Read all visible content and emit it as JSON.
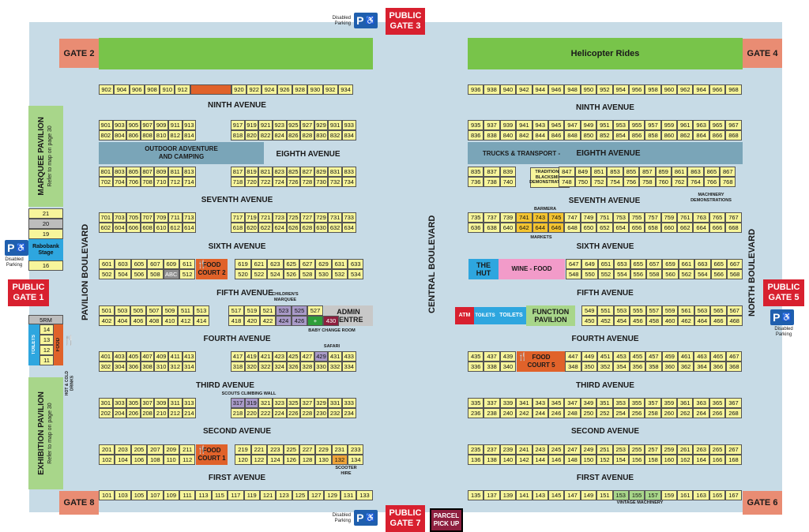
{
  "gates": {
    "g2": "GATE 2",
    "g4": "GATE 4",
    "g6": "GATE 6",
    "g8": "GATE 8"
  },
  "public": {
    "g1": "PUBLIC\nGATE 1",
    "g3": "PUBLIC\nGATE 3",
    "g5": "PUBLIC\nGATE 5",
    "g7": "PUBLIC\nGATE 7"
  },
  "parking": {
    "label": "Disabled\nParking",
    "symbol": "P"
  },
  "helicopter": "Helicopter Rides",
  "avenues": {
    "ninth": "NINTH AVENUE",
    "eighth": "EIGHTH AVENUE",
    "seventh": "SEVENTH AVENUE",
    "sixth": "SIXTH AVENUE",
    "fifth": "FIFTH AVENUE",
    "fourth": "FOURTH AVENUE",
    "third": "THIRD AVENUE",
    "second": "SECOND AVENUE",
    "first": "FIRST AVENUE"
  },
  "boulevards": {
    "pavilion": "PAVILION BOULEVARD",
    "central": "CENTRAL BOULEVARD",
    "north": "NORTH BOULEVARD"
  },
  "features": {
    "outdoor": "OUTDOOR ADVENTURE\nAND CAMPING",
    "trucks": "TRUCKS & TRANSPORT -",
    "blacksmith": "TRADITIONAL\nBLACKSMITH\nDEMONSTRATIONS",
    "barmera": "BARMERA",
    "markets": "MARKETS",
    "machinery": "MACHINERY\nDEMONSTRATIONS",
    "hut": "THE\nHUT",
    "wine": "WINE - FOOD",
    "food2": "FOOD\nCOURT 2",
    "food1": "FOOD\nCOURT 1",
    "food5": "FOOD\nCOURT 5",
    "childrens": "CHILDREN'S\nMARQUEE",
    "admin": "ADMIN\nCENTRE",
    "baby": "BABY CHANGE ROOM",
    "firstaid": "FIRST\nAID",
    "safari": "SAFARI",
    "scouts": "SCOUTS CLIMBING WALL",
    "scooter": "SCOOTER\nHIRE",
    "vintage": "VINTAGE MACHINERY",
    "function": "FUNCTION\nPAVILION",
    "atm": "ATM",
    "toilets": "TOILETS",
    "parcel": "PARCEL\nPICK UP",
    "abc": "ABC",
    "marquee": "MARQUEE PAVILION",
    "marquee_sub": "Refer to map on page 30",
    "exhibition": "EXHIBITION PAVILION",
    "exhibition_sub": "Refer to map on page 30",
    "rabobank": "Rabobank\nStage",
    "srm": "5RM",
    "food_side": "FOOD",
    "toilets_side": "TOILETS",
    "drinks": "HOT & COLD\nDRINKS",
    "stall_list": [
      "21",
      "20",
      "19",
      "16",
      "14",
      "13",
      "12",
      "11"
    ]
  },
  "rows": {
    "l9": [
      "902",
      "904",
      "906",
      "908",
      "910",
      "912",
      "",
      "920",
      "922",
      "924",
      "926",
      "928",
      "930",
      "932",
      "934"
    ],
    "l8a": [
      "901",
      "903",
      "905",
      "907",
      "909",
      "911",
      "913",
      "917",
      "919",
      "921",
      "923",
      "925",
      "927",
      "929",
      "931",
      "933"
    ],
    "l8b": [
      "802",
      "804",
      "806",
      "808",
      "810",
      "812",
      "814",
      "818",
      "820",
      "822",
      "824",
      "826",
      "828",
      "830",
      "832",
      "834"
    ],
    "l7a": [
      "801",
      "803",
      "805",
      "807",
      "809",
      "811",
      "813",
      "817",
      "819",
      "821",
      "823",
      "825",
      "827",
      "829",
      "831",
      "833"
    ],
    "l7b": [
      "702",
      "704",
      "706",
      "708",
      "710",
      "712",
      "714",
      "718",
      "720",
      "722",
      "724",
      "726",
      "728",
      "730",
      "732",
      "734"
    ],
    "l6a": [
      "701",
      "703",
      "705",
      "707",
      "709",
      "711",
      "713",
      "717",
      "719",
      "721",
      "723",
      "725",
      "727",
      "729",
      "731",
      "733"
    ],
    "l6b": [
      "602",
      "604",
      "606",
      "608",
      "610",
      "612",
      "614",
      "618",
      "620",
      "622",
      "624",
      "626",
      "628",
      "630",
      "632",
      "634"
    ],
    "l5a": [
      "601",
      "603",
      "605",
      "607",
      "609",
      "611",
      "619",
      "621",
      "623",
      "625",
      "627",
      "629",
      "631",
      "633"
    ],
    "l5b": [
      "502",
      "504",
      "506",
      "508",
      "ABC",
      "512",
      "520",
      "522",
      "524",
      "526",
      "528",
      "530",
      "532",
      "534"
    ],
    "l4a": [
      "501",
      "503",
      "505",
      "507",
      "509",
      "511",
      "513",
      "517",
      "519",
      "521",
      "523",
      "525",
      "527"
    ],
    "l4b": [
      "402",
      "404",
      "406",
      "408",
      "410",
      "412",
      "414",
      "418",
      "420",
      "422",
      "424",
      "426",
      "FA",
      "430"
    ],
    "l3a": [
      "401",
      "403",
      "405",
      "407",
      "409",
      "411",
      "413",
      "417",
      "419",
      "421",
      "423",
      "425",
      "427",
      "429",
      "431",
      "433"
    ],
    "l3b": [
      "302",
      "304",
      "306",
      "308",
      "310",
      "312",
      "314",
      "318",
      "320",
      "322",
      "324",
      "326",
      "328",
      "330",
      "332",
      "334"
    ],
    "l2a": [
      "301",
      "303",
      "305",
      "307",
      "309",
      "311",
      "313",
      "317",
      "319",
      "321",
      "323",
      "325",
      "327",
      "329",
      "331",
      "333"
    ],
    "l2b": [
      "202",
      "204",
      "206",
      "208",
      "210",
      "212",
      "214",
      "218",
      "220",
      "222",
      "224",
      "226",
      "228",
      "230",
      "232",
      "234"
    ],
    "l1a": [
      "201",
      "203",
      "205",
      "207",
      "209",
      "211",
      "219",
      "221",
      "223",
      "225",
      "227",
      "229",
      "231",
      "233"
    ],
    "l1b": [
      "102",
      "104",
      "106",
      "108",
      "110",
      "112",
      "120",
      "122",
      "124",
      "126",
      "128",
      "130",
      "132",
      "134"
    ],
    "l0": [
      "101",
      "103",
      "105",
      "107",
      "109",
      "111",
      "113",
      "115",
      "117",
      "119",
      "121",
      "123",
      "125",
      "127",
      "129",
      "131",
      "133"
    ],
    "r9": [
      "936",
      "938",
      "940",
      "942",
      "944",
      "946",
      "948",
      "950",
      "952",
      "954",
      "956",
      "958",
      "960",
      "962",
      "964",
      "966",
      "968"
    ],
    "r8a": [
      "935",
      "937",
      "939",
      "941",
      "943",
      "945",
      "947",
      "949",
      "951",
      "953",
      "955",
      "957",
      "959",
      "961",
      "963",
      "965",
      "967"
    ],
    "r8b": [
      "836",
      "838",
      "840",
      "842",
      "844",
      "846",
      "848",
      "850",
      "852",
      "854",
      "856",
      "858",
      "860",
      "862",
      "864",
      "866",
      "868"
    ],
    "r7a": [
      "835",
      "837",
      "839",
      "847",
      "849",
      "851",
      "853",
      "855",
      "857",
      "859",
      "861",
      "863",
      "865",
      "867"
    ],
    "r7b": [
      "736",
      "738",
      "740",
      "748",
      "750",
      "752",
      "754",
      "756",
      "758",
      "760",
      "762",
      "764",
      "766",
      "768"
    ],
    "r6a": [
      "735",
      "737",
      "739",
      "741",
      "743",
      "745",
      "747",
      "749",
      "751",
      "753",
      "755",
      "757",
      "759",
      "761",
      "763",
      "765",
      "767"
    ],
    "r6b": [
      "636",
      "638",
      "640",
      "642",
      "644",
      "646",
      "648",
      "650",
      "652",
      "654",
      "656",
      "658",
      "660",
      "662",
      "664",
      "666",
      "668"
    ],
    "r5a": [
      "647",
      "649",
      "651",
      "653",
      "655",
      "657",
      "659",
      "661",
      "663",
      "665",
      "667"
    ],
    "r5b": [
      "548",
      "550",
      "552",
      "554",
      "556",
      "558",
      "560",
      "562",
      "564",
      "566",
      "568"
    ],
    "r4a": [
      "549",
      "551",
      "553",
      "555",
      "557",
      "559",
      "561",
      "563",
      "565",
      "567"
    ],
    "r4b": [
      "450",
      "452",
      "454",
      "456",
      "458",
      "460",
      "462",
      "464",
      "466",
      "468"
    ],
    "r3a": [
      "435",
      "437",
      "439",
      "447",
      "449",
      "451",
      "453",
      "455",
      "457",
      "459",
      "461",
      "463",
      "465",
      "467"
    ],
    "r3b": [
      "336",
      "338",
      "340",
      "348",
      "350",
      "352",
      "354",
      "356",
      "358",
      "360",
      "362",
      "364",
      "366",
      "368"
    ],
    "r2a": [
      "335",
      "337",
      "339",
      "341",
      "343",
      "345",
      "347",
      "349",
      "351",
      "353",
      "355",
      "357",
      "359",
      "361",
      "363",
      "365",
      "367"
    ],
    "r2b": [
      "236",
      "238",
      "240",
      "242",
      "244",
      "246",
      "248",
      "250",
      "252",
      "254",
      "256",
      "258",
      "260",
      "262",
      "264",
      "266",
      "268"
    ],
    "r1a": [
      "235",
      "237",
      "239",
      "241",
      "243",
      "245",
      "247",
      "249",
      "251",
      "253",
      "255",
      "257",
      "259",
      "261",
      "263",
      "265",
      "267"
    ],
    "r1b": [
      "136",
      "138",
      "140",
      "142",
      "144",
      "146",
      "148",
      "150",
      "152",
      "154",
      "156",
      "158",
      "160",
      "162",
      "164",
      "166",
      "168"
    ],
    "r0": [
      "135",
      "137",
      "139",
      "141",
      "143",
      "145",
      "147",
      "149",
      "151",
      "153",
      "155",
      "157",
      "159",
      "161",
      "163",
      "165",
      "167"
    ]
  },
  "colors": {
    "stall": "#f7f59b",
    "ground": "#c7dbe6",
    "green": "#78c44a",
    "gate": "#e98c73",
    "public": "#d8202f",
    "food": "#e0622a",
    "wine": "#f29bc9",
    "hut": "#2ea6df",
    "eighth_band": "#7aa5b8"
  }
}
